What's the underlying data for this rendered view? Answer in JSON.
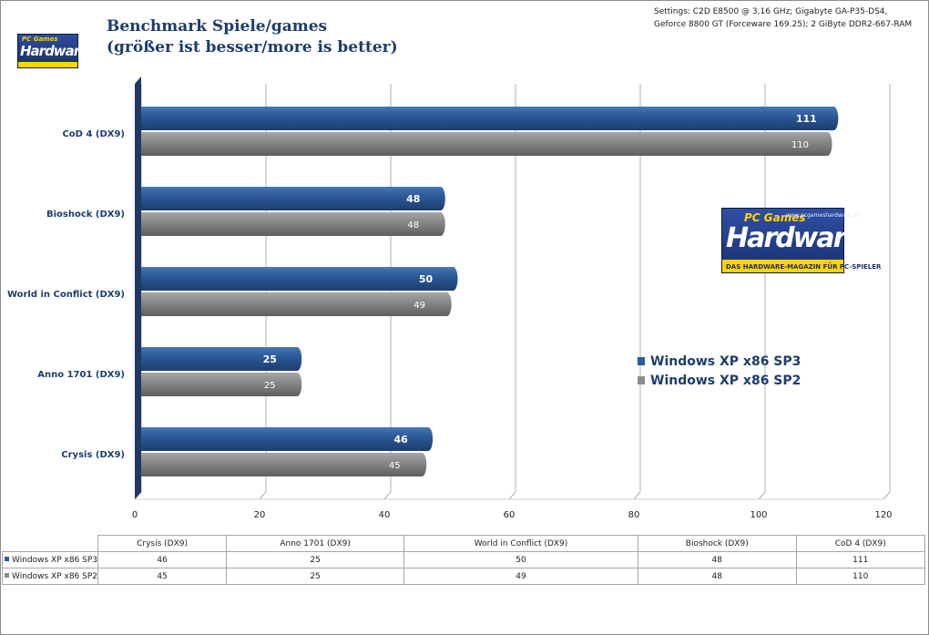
{
  "title_line1": "Benchmark Spiele/games",
  "title_line2": "(größer ist besser/more is better)",
  "settings_line1": "Settings: C2D E8500 @ 3,16 GHz; Gigabyte  GA-P35-DS4,",
  "settings_line2": "Geforce 8800 GT (Forceware 169.25); 2 GiByte DDR2-667-RAM",
  "logo_small": {
    "top": "PC Games",
    "main": "Hardware"
  },
  "logo_big": {
    "top": "PC Games",
    "url": "www.pcgameshardware.de",
    "main": "Hardware",
    "tag": "DAS HARDWARE-MAGAZIN FÜR PC-SPIELER"
  },
  "colors": {
    "sp3": "#2e5c9a",
    "sp2": "#8c8c8c",
    "axis_wall": "#1f3a62"
  },
  "chart_data": {
    "type": "bar",
    "orientation": "horizontal",
    "categories": [
      "CoD 4  (DX9)",
      "Bioshock  (DX9)",
      "World in Conflict  (DX9)",
      "Anno 1701  (DX9)",
      "Crysis (DX9)"
    ],
    "series": [
      {
        "name": "Windows XP x86 SP3",
        "values": [
          111,
          48,
          50,
          25,
          46
        ],
        "color": "#2e5c9a"
      },
      {
        "name": "Windows XP x86 SP2",
        "values": [
          110,
          48,
          49,
          25,
          45
        ],
        "color": "#8c8c8c"
      }
    ],
    "xlim": [
      0,
      120
    ],
    "xticks": [
      0,
      20,
      40,
      60,
      80,
      100,
      120
    ],
    "grid": true,
    "legend_position": "right"
  },
  "table": {
    "columns": [
      "Crysis (DX9)",
      "Anno 1701  (DX9)",
      "World in Conflict  (DX9)",
      "Bioshock  (DX9)",
      "CoD 4  (DX9)"
    ],
    "rows": [
      {
        "label": "Windows XP x86 SP3",
        "values": [
          "46",
          "25",
          "50",
          "48",
          "111"
        ]
      },
      {
        "label": "Windows XP x86 SP2",
        "values": [
          "45",
          "25",
          "49",
          "48",
          "110"
        ]
      }
    ]
  }
}
